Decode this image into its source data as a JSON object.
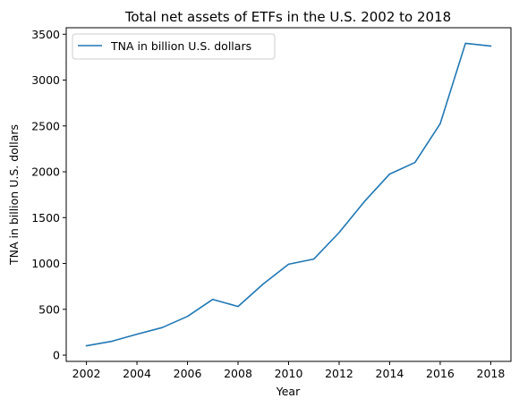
{
  "chart_data": {
    "type": "line",
    "title": "Total net assets of ETFs in the U.S. 2002 to 2018",
    "xlabel": "Year",
    "ylabel": "TNA in billion U.S. dollars",
    "x": [
      2002,
      2003,
      2004,
      2005,
      2006,
      2007,
      2008,
      2009,
      2010,
      2011,
      2012,
      2013,
      2014,
      2015,
      2016,
      2017,
      2018
    ],
    "series": [
      {
        "name": "TNA in billion U.S. dollars",
        "values": [
          102,
          151,
          228,
          301,
          423,
          608,
          531,
          777,
          992,
          1048,
          1337,
          1675,
          1975,
          2101,
          2524,
          3401,
          3371
        ],
        "color": "#1f77b4"
      }
    ],
    "xlim": [
      2001.2,
      2018.8
    ],
    "ylim": [
      -68,
      3571
    ],
    "xticks": [
      2002,
      2004,
      2006,
      2008,
      2010,
      2012,
      2014,
      2016,
      2018
    ],
    "yticks": [
      0,
      500,
      1000,
      1500,
      2000,
      2500,
      3000,
      3500
    ],
    "legend_position": "top-left",
    "grid": false
  }
}
